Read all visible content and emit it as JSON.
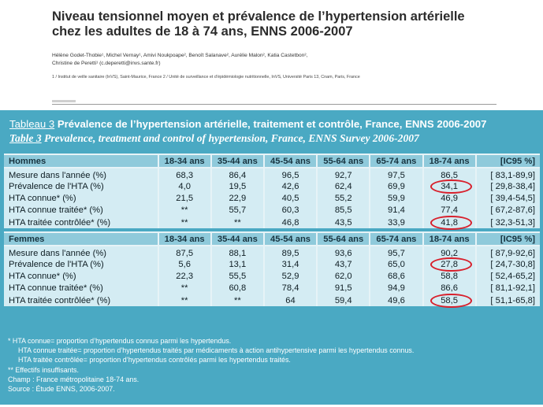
{
  "article": {
    "title_line1": "Niveau tensionnel moyen et prévalence de l’hypertension artérielle",
    "title_line2": "chez les adultes de 18 à 74 ans, ENNS 2006-2007",
    "authors_line1": "Hélène Godet-Thobie¹, Michel Vernay¹, Amivi Noukpoape², Benoît Salanave², Aurélie Malon², Katia Castetbon²,",
    "authors_line2": "Christine de Peretti¹ (c.deperetti@invs.sante.fr)",
    "affiliations": "1 / Institut de veille sanitaire (InVS), Saint-Maurice, France    2 / Unité de surveillance et d’épidémiologie nutritionnelle, InVS, Université Paris 13, Cnam, Paris, France"
  },
  "table": {
    "title_fr_num": "Tableau 3",
    "title_fr": "Prévalence de l’hypertension artérielle, traitement et contrôle, France, ENNS 2006-2007",
    "title_en_num": "Table 3",
    "title_en": "Prevalence, treatment and control of hypertension, France, ENNS Survey 2006-2007",
    "age_groups": [
      "18-34 ans",
      "35-44 ans",
      "45-54 ans",
      "55-64 ans",
      "65-74 ans",
      "18-74 ans"
    ],
    "ci_header": "[IC95 %]",
    "sections": [
      {
        "group": "Hommes",
        "rows": [
          {
            "label": "Mesure dans l'année (%)",
            "values": [
              "68,3",
              "86,4",
              "96,5",
              "92,7",
              "97,5",
              "86,5"
            ],
            "ci": "[ 83,1-89,9]",
            "highlight": false
          },
          {
            "label": "Prévalence de l'HTA (%)",
            "values": [
              "4,0",
              "19,5",
              "42,6",
              "62,4",
              "69,9",
              "34,1"
            ],
            "ci": "[ 29,8-38,4]",
            "highlight": true
          },
          {
            "label": "HTA connue* (%)",
            "values": [
              "21,5",
              "22,9",
              "40,5",
              "55,2",
              "59,9",
              "46,9"
            ],
            "ci": "[ 39,4-54,5]",
            "highlight": false
          },
          {
            "label": "HTA connue traitée*  (%)",
            "values": [
              "**",
              "55,7",
              "60,3",
              "85,5",
              "91,4",
              "77,4"
            ],
            "ci": "[ 67,2-87,6]",
            "highlight": false
          },
          {
            "label": "HTA traitée contrôlée* (%)",
            "values": [
              "**",
              "**",
              "46,8",
              "43,5",
              "33,9",
              "41,8"
            ],
            "ci": "[ 32,3-51,3]",
            "highlight": true
          }
        ]
      },
      {
        "group": "Femmes",
        "rows": [
          {
            "label": "Mesure dans l'année (%)",
            "values": [
              "87,5",
              "88,1",
              "89,5",
              "93,6",
              "95,7",
              "90,2"
            ],
            "ci": "[ 87,9-92,6]",
            "highlight": false
          },
          {
            "label": "Prévalence de l'HTA (%)",
            "values": [
              "5,6",
              "13,1",
              "31,4",
              "43,7",
              "65,0",
              "27,8"
            ],
            "ci": "[ 24,7-30,8]",
            "highlight": true
          },
          {
            "label": "HTA connue* (%)",
            "values": [
              "22,3",
              "55,5",
              "52,9",
              "62,0",
              "68,6",
              "58,8"
            ],
            "ci": "[ 52,4-65,2]",
            "highlight": false
          },
          {
            "label": "HTA connue traitée* (%)",
            "values": [
              "**",
              "60,8",
              "78,4",
              "91,5",
              "94,9",
              "86,6"
            ],
            "ci": "[ 81,1-92,1]",
            "highlight": false
          },
          {
            "label": "HTA traitée contrôlée* (%)",
            "values": [
              "**",
              "**",
              "64",
              "59,4",
              "49,6",
              "58,5"
            ],
            "ci": "[ 51,1-65,8]",
            "highlight": true
          }
        ]
      }
    ],
    "notes": [
      {
        "text": "*  HTA connue= proportion d’hypertendus connus parmi les hypertendus.",
        "indent": false
      },
      {
        "text": "HTA connue traitée= proportion d’hypertendus traités par médicaments à action antihypertensive parmi les hypertendus connus.",
        "indent": true
      },
      {
        "text": "HTA traitée contrôlée= proportion d’hypertendus contrôlés parmi les hypertendus traités.",
        "indent": true
      },
      {
        "text": "** Effectifs insuffisants.",
        "indent": false
      },
      {
        "text": "Champ : France métropolitaine 18-74 ans.",
        "indent": false
      },
      {
        "text": "Source : Étude ENNS, 2006-2007.",
        "indent": false
      }
    ]
  },
  "colors": {
    "panel": "#4aa9c3",
    "header_band": "#8fcadb",
    "cell": "#d4ecf3",
    "highlight_ring": "#d8202c"
  }
}
